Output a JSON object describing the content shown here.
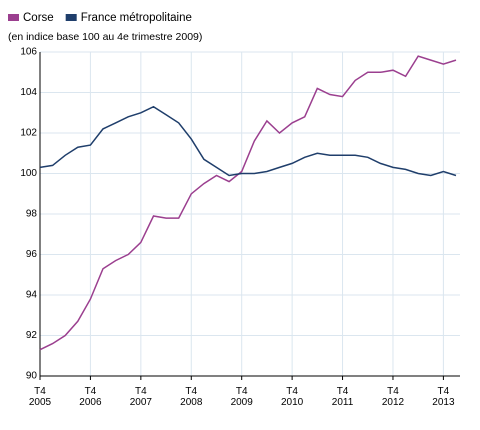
{
  "chart_data": {
    "type": "line",
    "subtitle": "(en indice base 100 au 4e trimestre 2009)",
    "categories": [
      "T4 2005",
      null,
      null,
      null,
      "T4 2006",
      null,
      null,
      null,
      "T4 2007",
      null,
      null,
      null,
      "T4 2008",
      null,
      null,
      null,
      "T4 2009",
      null,
      null,
      null,
      "T4 2010",
      null,
      null,
      null,
      "T4 2011",
      null,
      null,
      null,
      "T4 2012",
      null,
      null,
      null,
      "T4 2013",
      null
    ],
    "series": [
      {
        "name": "Corse",
        "color": "#9b3f8f",
        "values": [
          91.3,
          91.6,
          92.0,
          92.7,
          93.8,
          95.3,
          95.7,
          96.0,
          96.6,
          97.9,
          97.8,
          97.8,
          99.0,
          99.5,
          99.9,
          99.6,
          100.1,
          101.6,
          102.6,
          102.0,
          102.5,
          102.8,
          104.2,
          103.9,
          103.8,
          104.6,
          105.0,
          105.0,
          105.1,
          104.8,
          105.8,
          105.6,
          105.4,
          105.6
        ]
      },
      {
        "name": "France métropolitaine",
        "color": "#1f3e6b",
        "values": [
          100.3,
          100.4,
          100.9,
          101.3,
          101.4,
          102.2,
          102.5,
          102.8,
          103.0,
          103.3,
          102.9,
          102.5,
          101.7,
          100.7,
          100.3,
          99.9,
          100.0,
          100.0,
          100.1,
          100.3,
          100.5,
          100.8,
          101.0,
          100.9,
          100.9,
          100.9,
          100.8,
          100.5,
          100.3,
          100.2,
          100.0,
          99.9,
          100.1,
          99.9
        ]
      }
    ],
    "ylim": [
      90,
      106
    ],
    "yticks": [
      90,
      92,
      94,
      96,
      98,
      100,
      102,
      104,
      106
    ],
    "grid": true
  }
}
